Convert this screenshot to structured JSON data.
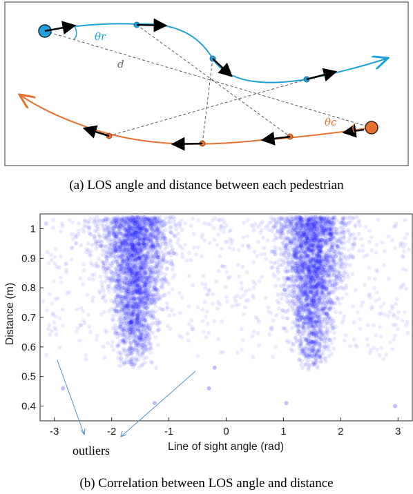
{
  "captions": {
    "a": "(a) LOS angle and distance between each pedestrian",
    "b": "(b) Correlation between LOS angle and distance"
  },
  "diagram": {
    "labels": {
      "theta_r": "θr",
      "theta_c": "θc",
      "d": "d"
    },
    "colors": {
      "robot": "#1ea0d8",
      "crowd": "#e8702e",
      "arrow": "#000000",
      "los": "#555555"
    }
  },
  "annotation": {
    "text": "outliers"
  },
  "chart_data": {
    "type": "scatter",
    "xlabel": "Line of sight angle (rad)",
    "ylabel": "Distance (m)",
    "xlim": [
      -3.25,
      3.25
    ],
    "ylim": [
      0.35,
      1.05
    ],
    "xticks": [
      -3,
      -2,
      -1,
      0,
      1,
      2,
      3
    ],
    "yticks": [
      0.4,
      0.5,
      0.6,
      0.7,
      0.8,
      0.9,
      1
    ],
    "ytick_labels": [
      "0.4",
      "0.5",
      "0.6",
      "0.7",
      "0.8",
      "0.9",
      "1"
    ],
    "point_color": "#0000ff",
    "clusters": [
      {
        "center_x": -1.6,
        "spread_x": 0.5,
        "y_min": 0.52,
        "y_max": 1.04
      },
      {
        "center_x": 1.5,
        "spread_x": 0.5,
        "y_min": 0.52,
        "y_max": 1.04
      }
    ],
    "outliers": [
      {
        "x": -2.85,
        "y": 0.46
      },
      {
        "x": -1.25,
        "y": 0.41
      },
      {
        "x": -0.3,
        "y": 0.46
      },
      {
        "x": 1.05,
        "y": 0.41
      },
      {
        "x": 2.95,
        "y": 0.4
      },
      {
        "x": -0.2,
        "y": 0.53
      }
    ],
    "grid": false
  }
}
